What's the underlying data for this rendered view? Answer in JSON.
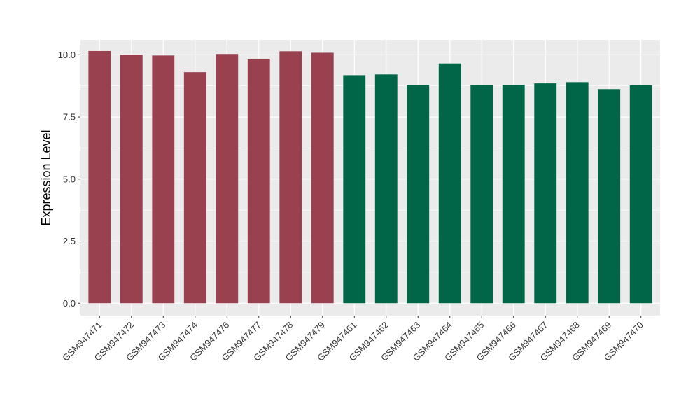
{
  "chart_data": {
    "type": "bar",
    "title": "",
    "xlabel": "",
    "ylabel": "Expression Level",
    "ylim": [
      -0.5,
      10.6
    ],
    "yticks": [
      0.0,
      2.5,
      5.0,
      7.5,
      10.0
    ],
    "ytick_labels": [
      "0.0",
      "2.5",
      "5.0",
      "7.5",
      "10.0"
    ],
    "grid": true,
    "legend": "none",
    "categories": [
      "GSM947471",
      "GSM947472",
      "GSM947473",
      "GSM947474",
      "GSM947476",
      "GSM947477",
      "GSM947478",
      "GSM947479",
      "GSM947461",
      "GSM947462",
      "GSM947463",
      "GSM947464",
      "GSM947465",
      "GSM947466",
      "GSM947467",
      "GSM947468",
      "GSM947469",
      "GSM947470"
    ],
    "values": [
      10.15,
      10.0,
      9.97,
      9.3,
      10.03,
      9.84,
      10.14,
      10.08,
      9.18,
      9.21,
      8.79,
      9.65,
      8.77,
      8.79,
      8.85,
      8.9,
      8.62,
      8.77
    ],
    "bar_colors": [
      "#9a4150",
      "#9a4150",
      "#9a4150",
      "#9a4150",
      "#9a4150",
      "#9a4150",
      "#9a4150",
      "#9a4150",
      "#006647",
      "#006647",
      "#006647",
      "#006647",
      "#006647",
      "#006647",
      "#006647",
      "#006647",
      "#006647",
      "#006647"
    ],
    "panel_background": "#ebebeb",
    "grid_color": "#ffffff"
  }
}
